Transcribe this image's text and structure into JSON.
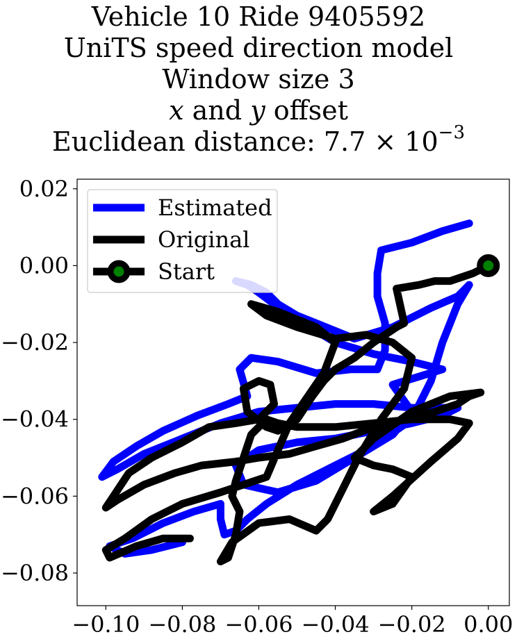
{
  "chart_data": {
    "type": "line",
    "title_lines": [
      "Vehicle 10 Ride 9405592",
      "UniTS speed direction model",
      "Window size 3"
    ],
    "title_offset_line": {
      "x": "x",
      "and": " and ",
      "y": "y",
      "rest": " offset"
    },
    "title_distance": {
      "label": "Euclidean distance: ",
      "mantissa": "7.7",
      "times": " × 10",
      "exponent": "−3"
    },
    "xlim": [
      -0.1075,
      0.0055
    ],
    "ylim": [
      -0.0885,
      0.0225
    ],
    "xticks": [
      {
        "value": -0.1,
        "label": "−0.10"
      },
      {
        "value": -0.08,
        "label": "−0.08"
      },
      {
        "value": -0.06,
        "label": "−0.06"
      },
      {
        "value": -0.04,
        "label": "−0.04"
      },
      {
        "value": -0.02,
        "label": "−0.02"
      },
      {
        "value": 0.0,
        "label": "0.00"
      }
    ],
    "yticks": [
      {
        "value": 0.02,
        "label": "0.02"
      },
      {
        "value": 0.0,
        "label": "0.00"
      },
      {
        "value": -0.02,
        "label": "−0.02"
      },
      {
        "value": -0.04,
        "label": "−0.04"
      },
      {
        "value": -0.06,
        "label": "−0.06"
      },
      {
        "value": -0.08,
        "label": "−0.08"
      }
    ],
    "legend_position": "upper-left",
    "grid": false,
    "series": [
      {
        "name": "Estimated",
        "color": "#0000ff",
        "points": [
          [
            -0.005,
            0.011
          ],
          [
            -0.012,
            0.009
          ],
          [
            -0.02,
            0.006
          ],
          [
            -0.028,
            0.004
          ],
          [
            -0.029,
            -0.002
          ],
          [
            -0.029,
            -0.008
          ],
          [
            -0.027,
            -0.015
          ],
          [
            -0.027,
            -0.022
          ],
          [
            -0.029,
            -0.027
          ],
          [
            -0.036,
            -0.027
          ],
          [
            -0.045,
            -0.028
          ],
          [
            -0.055,
            -0.025
          ],
          [
            -0.062,
            -0.024
          ],
          [
            -0.065,
            -0.027
          ],
          [
            -0.063,
            -0.034
          ],
          [
            -0.068,
            -0.036
          ],
          [
            -0.076,
            -0.039
          ],
          [
            -0.085,
            -0.043
          ],
          [
            -0.092,
            -0.047
          ],
          [
            -0.098,
            -0.051
          ],
          [
            -0.101,
            -0.055
          ],
          [
            -0.097,
            -0.053
          ],
          [
            -0.09,
            -0.049
          ],
          [
            -0.08,
            -0.045
          ],
          [
            -0.07,
            -0.041
          ],
          [
            -0.06,
            -0.038
          ],
          [
            -0.05,
            -0.037
          ],
          [
            -0.04,
            -0.036
          ],
          [
            -0.03,
            -0.036
          ],
          [
            -0.02,
            -0.037
          ],
          [
            -0.012,
            -0.037
          ],
          [
            -0.008,
            -0.037
          ],
          [
            -0.012,
            -0.039
          ],
          [
            -0.02,
            -0.041
          ],
          [
            -0.03,
            -0.043
          ],
          [
            -0.04,
            -0.045
          ],
          [
            -0.05,
            -0.046
          ],
          [
            -0.06,
            -0.048
          ],
          [
            -0.066,
            -0.052
          ],
          [
            -0.064,
            -0.057
          ],
          [
            -0.055,
            -0.059
          ],
          [
            -0.045,
            -0.056
          ],
          [
            -0.035,
            -0.05
          ],
          [
            -0.025,
            -0.044
          ],
          [
            -0.02,
            -0.038
          ],
          [
            -0.025,
            -0.031
          ],
          [
            -0.012,
            -0.027
          ],
          [
            -0.02,
            -0.025
          ],
          [
            -0.03,
            -0.023
          ],
          [
            -0.04,
            -0.02
          ],
          [
            -0.045,
            -0.017
          ],
          [
            -0.05,
            -0.014
          ],
          [
            -0.056,
            -0.01
          ],
          [
            -0.06,
            -0.007
          ],
          [
            -0.063,
            -0.005
          ],
          [
            -0.066,
            -0.004
          ],
          [
            -0.062,
            -0.005
          ],
          [
            -0.058,
            -0.007
          ],
          [
            -0.055,
            -0.01
          ],
          [
            -0.05,
            -0.013
          ],
          [
            -0.045,
            -0.015
          ],
          [
            -0.04,
            -0.017
          ],
          [
            -0.035,
            -0.019
          ],
          [
            -0.025,
            -0.016
          ],
          [
            -0.015,
            -0.011
          ],
          [
            -0.008,
            -0.008
          ],
          [
            -0.005,
            -0.005
          ],
          [
            -0.008,
            -0.01
          ],
          [
            -0.012,
            -0.02
          ],
          [
            -0.015,
            -0.03
          ],
          [
            -0.02,
            -0.04
          ],
          [
            -0.03,
            -0.047
          ],
          [
            -0.04,
            -0.052
          ],
          [
            -0.05,
            -0.057
          ],
          [
            -0.058,
            -0.062
          ],
          [
            -0.063,
            -0.066
          ],
          [
            -0.066,
            -0.069
          ],
          [
            -0.069,
            -0.07
          ],
          [
            -0.07,
            -0.066
          ],
          [
            -0.07,
            -0.062
          ],
          [
            -0.077,
            -0.064
          ],
          [
            -0.085,
            -0.067
          ],
          [
            -0.093,
            -0.071
          ],
          [
            -0.099,
            -0.073
          ],
          [
            -0.095,
            -0.075
          ],
          [
            -0.088,
            -0.074
          ],
          [
            -0.08,
            -0.072
          ]
        ]
      },
      {
        "name": "Original",
        "color": "#000000",
        "points": [
          [
            0.0,
            0.0
          ],
          [
            -0.004,
            -0.002
          ],
          [
            -0.01,
            -0.004
          ],
          [
            -0.014,
            -0.004
          ],
          [
            -0.018,
            -0.005
          ],
          [
            -0.024,
            -0.006
          ],
          [
            -0.022,
            -0.015
          ],
          [
            -0.024,
            -0.016
          ],
          [
            -0.03,
            -0.02
          ],
          [
            -0.035,
            -0.024
          ],
          [
            -0.04,
            -0.027
          ],
          [
            -0.043,
            -0.03
          ],
          [
            -0.046,
            -0.034
          ],
          [
            -0.05,
            -0.04
          ],
          [
            -0.055,
            -0.043
          ],
          [
            -0.058,
            -0.042
          ],
          [
            -0.063,
            -0.038
          ],
          [
            -0.064,
            -0.032
          ],
          [
            -0.06,
            -0.03
          ],
          [
            -0.057,
            -0.031
          ],
          [
            -0.056,
            -0.036
          ],
          [
            -0.06,
            -0.04
          ],
          [
            -0.066,
            -0.041
          ],
          [
            -0.073,
            -0.042
          ],
          [
            -0.08,
            -0.046
          ],
          [
            -0.088,
            -0.05
          ],
          [
            -0.094,
            -0.054
          ],
          [
            -0.098,
            -0.06
          ],
          [
            -0.1,
            -0.063
          ],
          [
            -0.097,
            -0.061
          ],
          [
            -0.09,
            -0.057
          ],
          [
            -0.082,
            -0.054
          ],
          [
            -0.075,
            -0.052
          ],
          [
            -0.066,
            -0.051
          ],
          [
            -0.06,
            -0.05
          ],
          [
            -0.052,
            -0.049
          ],
          [
            -0.045,
            -0.047
          ],
          [
            -0.038,
            -0.045
          ],
          [
            -0.03,
            -0.042
          ],
          [
            -0.022,
            -0.04
          ],
          [
            -0.014,
            -0.038
          ],
          [
            -0.008,
            -0.036
          ],
          [
            -0.005,
            -0.034
          ],
          [
            -0.002,
            -0.033
          ],
          [
            -0.01,
            -0.034
          ],
          [
            -0.02,
            -0.038
          ],
          [
            -0.03,
            -0.045
          ],
          [
            -0.035,
            -0.05
          ],
          [
            -0.03,
            -0.052
          ],
          [
            -0.025,
            -0.053
          ],
          [
            -0.02,
            -0.055
          ],
          [
            -0.025,
            -0.062
          ],
          [
            -0.03,
            -0.064
          ],
          [
            -0.025,
            -0.06
          ],
          [
            -0.015,
            -0.051
          ],
          [
            -0.008,
            -0.045
          ],
          [
            -0.005,
            -0.041
          ],
          [
            -0.01,
            -0.04
          ],
          [
            -0.02,
            -0.04
          ],
          [
            -0.03,
            -0.041
          ],
          [
            -0.04,
            -0.042
          ],
          [
            -0.05,
            -0.042
          ],
          [
            -0.055,
            -0.041
          ],
          [
            -0.058,
            -0.04
          ],
          [
            -0.062,
            -0.044
          ],
          [
            -0.064,
            -0.05
          ],
          [
            -0.066,
            -0.056
          ],
          [
            -0.067,
            -0.06
          ],
          [
            -0.065,
            -0.064
          ],
          [
            -0.066,
            -0.07
          ],
          [
            -0.068,
            -0.076
          ],
          [
            -0.07,
            -0.077
          ],
          [
            -0.067,
            -0.072
          ],
          [
            -0.06,
            -0.067
          ],
          [
            -0.052,
            -0.066
          ],
          [
            -0.045,
            -0.069
          ],
          [
            -0.042,
            -0.066
          ],
          [
            -0.038,
            -0.058
          ],
          [
            -0.034,
            -0.05
          ],
          [
            -0.028,
            -0.04
          ],
          [
            -0.022,
            -0.032
          ],
          [
            -0.02,
            -0.024
          ],
          [
            -0.025,
            -0.02
          ],
          [
            -0.032,
            -0.018
          ],
          [
            -0.04,
            -0.019
          ],
          [
            -0.05,
            -0.016
          ],
          [
            -0.058,
            -0.013
          ],
          [
            -0.062,
            -0.01
          ],
          [
            -0.055,
            -0.012
          ],
          [
            -0.045,
            -0.016
          ],
          [
            -0.04,
            -0.02
          ],
          [
            -0.043,
            -0.028
          ],
          [
            -0.052,
            -0.041
          ],
          [
            -0.058,
            -0.055
          ],
          [
            -0.07,
            -0.059
          ],
          [
            -0.08,
            -0.062
          ],
          [
            -0.088,
            -0.066
          ],
          [
            -0.095,
            -0.071
          ],
          [
            -0.1,
            -0.074
          ],
          [
            -0.099,
            -0.076
          ],
          [
            -0.092,
            -0.073
          ],
          [
            -0.085,
            -0.071
          ],
          [
            -0.078,
            -0.071
          ]
        ]
      }
    ],
    "start": {
      "name": "Start",
      "x": 0.0,
      "y": 0.0,
      "marker_face": "#008000",
      "marker_edge": "#000000"
    }
  }
}
